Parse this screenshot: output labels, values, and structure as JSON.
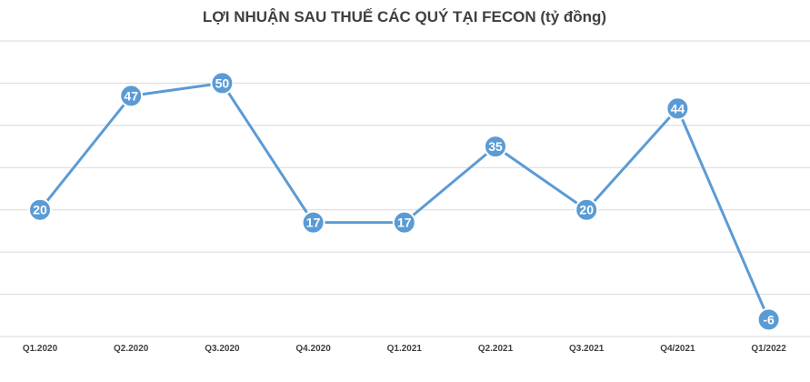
{
  "chart_data": {
    "type": "line",
    "title": "LỢI NHUẬN SAU THUẾ CÁC QUÝ TẠI FECON (tỷ đồng)",
    "categories": [
      "Q1.2020",
      "Q2.2020",
      "Q3.2020",
      "Q4.2020",
      "Q1.2021",
      "Q2.2021",
      "Q3.2021",
      "Q4/2021",
      "Q1/2022"
    ],
    "series": [
      {
        "values": [
          20,
          47,
          50,
          17,
          17,
          35,
          20,
          44,
          -6
        ]
      }
    ],
    "data_labels": [
      "20",
      "47",
      "50",
      "17",
      "17",
      "35",
      "20",
      "44",
      "-6"
    ],
    "ylim": [
      -10,
      60
    ],
    "y_grid_step": 10,
    "grid": true,
    "legend": "none",
    "colors": {
      "line": "#5b9bd5",
      "marker_fill": "#5b9bd5",
      "marker_stroke": "#ffffff",
      "gridline": "#d9d9d9",
      "text": "#404040"
    }
  }
}
